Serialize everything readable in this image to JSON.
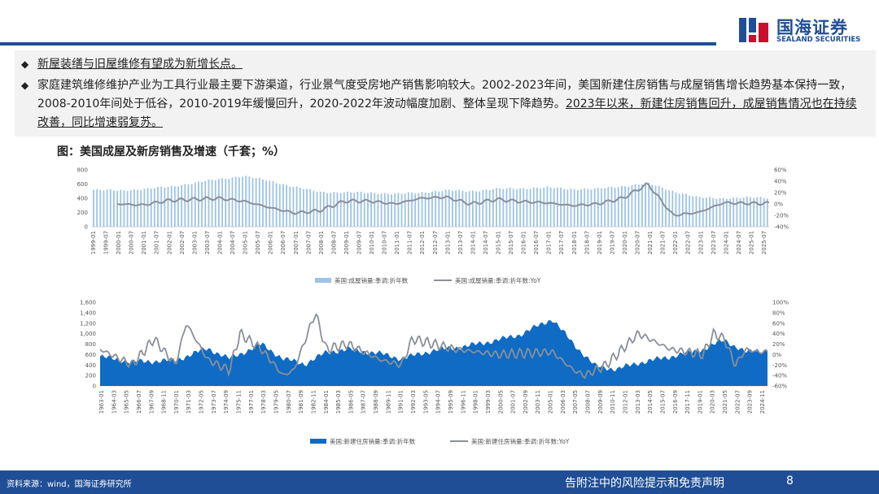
{
  "header": {
    "logo_cn": "国海证券",
    "logo_en": "SEALAND SECURITIES"
  },
  "bullets": {
    "b1": "新屋装缮与旧屋维修有望成为新增长点。",
    "b2_plain": "家庭建筑维修维护产业为工具行业最主要下游渠道，行业景气度受房地产销售影响较大。2002-2023年间，美国新建住房销售与成屋销售增长趋势基本保持一致，2008-2010年间处于低谷，2010-2019年缓慢回升，2020-2022年波动幅度加剧、整体呈现下降趋势。",
    "b2_underlined": "2023年以来，新建住房销售回升，成屋销售情况也在持续改善，同比增速弱复苏。"
  },
  "figure": {
    "title": "图：美国成屋及新房销售及增速（千套；%）"
  },
  "chart_data": [
    {
      "type": "bar",
      "legend": [
        "美国:成屋销量:季调:折年数",
        "美国:成屋销量:季调:折年数:YoY"
      ],
      "yleft_ticks": [
        "0",
        "200",
        "400",
        "600",
        "800"
      ],
      "yright_ticks": [
        "60%",
        "40%",
        "20%",
        "0%",
        "-20%",
        "-40%"
      ],
      "ylim_left": [
        0,
        800
      ],
      "ylim_right": [
        -40,
        60
      ],
      "x_ticks": [
        "1999-01",
        "1999-07",
        "2000-01",
        "2000-07",
        "2001-01",
        "2001-07",
        "2002-01",
        "2002-07",
        "2003-01",
        "2003-07",
        "2004-01",
        "2004-07",
        "2005-01",
        "2005-07",
        "2006-01",
        "2006-07",
        "2007-01",
        "2007-07",
        "2008-01",
        "2008-07",
        "2009-01",
        "2009-07",
        "2010-01",
        "2010-07",
        "2011-01",
        "2011-07",
        "2012-01",
        "2012-07",
        "2013-01",
        "2013-07",
        "2014-01",
        "2014-07",
        "2015-01",
        "2015-07",
        "2016-01",
        "2016-07",
        "2017-01",
        "2017-07",
        "2018-01",
        "2018-07",
        "2019-01",
        "2019-07",
        "2020-01",
        "2020-07",
        "2021-01",
        "2021-07",
        "2022-01",
        "2022-07",
        "2023-01",
        "2023-07",
        "2024-01",
        "2024-07",
        "2025-01",
        "2025-07"
      ],
      "series": [
        {
          "name": "美国:成屋销量:季调:折年数",
          "type": "bar",
          "x": [
            "1999",
            "2000",
            "2001",
            "2002",
            "2003",
            "2004",
            "2005",
            "2006",
            "2007",
            "2008",
            "2009",
            "2010",
            "2011",
            "2012",
            "2013",
            "2014",
            "2015",
            "2016",
            "2017",
            "2018",
            "2019",
            "2020",
            "2021",
            "2022",
            "2023",
            "2024",
            "2025"
          ],
          "values": [
            520,
            510,
            525,
            560,
            610,
            670,
            710,
            650,
            560,
            490,
            480,
            480,
            460,
            480,
            510,
            500,
            530,
            540,
            550,
            530,
            530,
            570,
            610,
            500,
            410,
            400,
            410
          ]
        },
        {
          "name": "美国:成屋销量:季调:折年数:YoY",
          "type": "line",
          "x": [
            "2000",
            "2001",
            "2002",
            "2003",
            "2004",
            "2005",
            "2006",
            "2007",
            "2008",
            "2009",
            "2010",
            "2011",
            "2012",
            "2013",
            "2014",
            "2015",
            "2016",
            "2017",
            "2018",
            "2019",
            "2020",
            "2021",
            "2022",
            "2023",
            "2024",
            "2025"
          ],
          "values": [
            0,
            -2,
            6,
            8,
            10,
            5,
            -6,
            -16,
            -12,
            5,
            5,
            0,
            10,
            12,
            0,
            8,
            4,
            2,
            -3,
            0,
            10,
            35,
            -20,
            -15,
            2,
            1
          ]
        }
      ]
    },
    {
      "type": "area",
      "legend": [
        "美国:新建住房销量:季调:折年数",
        "美国:新建住房销量:季调:折年数:YoY"
      ],
      "yleft_ticks": [
        "0",
        "200",
        "400",
        "600",
        "800",
        "1,000",
        "1,200",
        "1,400",
        "1,600"
      ],
      "yright_ticks": [
        "100%",
        "80%",
        "60%",
        "40%",
        "20%",
        "0%",
        "-20%",
        "-40%",
        "-60%"
      ],
      "ylim_left": [
        0,
        1600
      ],
      "ylim_right": [
        -60,
        100
      ],
      "x_ticks": [
        "1963-01",
        "1964-03",
        "1965-05",
        "1966-07",
        "1967-09",
        "1968-11",
        "1970-01",
        "1971-03",
        "1972-05",
        "1973-07",
        "1974-09",
        "1975-11",
        "1977-01",
        "1978-03",
        "1979-05",
        "1980-07",
        "1981-09",
        "1982-11",
        "1984-01",
        "1985-03",
        "1986-05",
        "1987-07",
        "1988-09",
        "1989-11",
        "1991-01",
        "1992-03",
        "1993-05",
        "1994-07",
        "1995-09",
        "1996-11",
        "1998-01",
        "1999-03",
        "2000-05",
        "2001-07",
        "2002-09",
        "2003-11",
        "2005-01",
        "2006-03",
        "2007-05",
        "2008-07",
        "2009-09",
        "2010-11",
        "2012-01",
        "2013-03",
        "2014-05",
        "2015-07",
        "2016-09",
        "2017-11",
        "2019-01",
        "2020-03",
        "2021-05",
        "2022-07",
        "2023-09",
        "2024-11"
      ],
      "series": [
        {
          "name": "美国:新建住房销量:季调:折年数",
          "type": "area",
          "x": [
            "1963",
            "1966",
            "1970",
            "1973",
            "1975",
            "1978",
            "1980",
            "1982",
            "1984",
            "1986",
            "1989",
            "1991",
            "1994",
            "1997",
            "2000",
            "2002",
            "2005",
            "2007",
            "2009",
            "2011",
            "2013",
            "2016",
            "2019",
            "2021",
            "2023",
            "2024"
          ],
          "values": [
            560,
            460,
            490,
            720,
            520,
            800,
            520,
            420,
            640,
            700,
            620,
            520,
            680,
            760,
            880,
            980,
            1280,
            800,
            380,
            320,
            440,
            560,
            700,
            880,
            640,
            680
          ]
        },
        {
          "name": "美国:新建住房销量:季调:折年数:YoY",
          "type": "line",
          "x": [
            "1963",
            "1964",
            "1966",
            "1968",
            "1970",
            "1971",
            "1973",
            "1975",
            "1976",
            "1978",
            "1980",
            "1981",
            "1983",
            "1984",
            "1986",
            "1989",
            "1991",
            "1992",
            "1996",
            "2000",
            "2005",
            "2007",
            "2008",
            "2010",
            "2012",
            "2013",
            "2016",
            "2019",
            "2020",
            "2021",
            "2022",
            "2023",
            "2024"
          ],
          "values": [
            10,
            0,
            -20,
            30,
            -20,
            60,
            -10,
            -30,
            40,
            10,
            -40,
            -30,
            80,
            10,
            20,
            -10,
            -20,
            30,
            10,
            0,
            5,
            -30,
            -40,
            -20,
            20,
            40,
            10,
            0,
            40,
            30,
            -20,
            10,
            5
          ]
        }
      ]
    }
  ],
  "footer": {
    "source": "资料来源：wind，国海证券研究所",
    "disclaimer": "告附注中的风险提示和免责声明",
    "page": "8"
  },
  "colors": {
    "brand": "#1f4e96",
    "bar_light": "#9dc3e6",
    "area_dark": "#0f6bc4",
    "line_gray": "#8a8f99"
  }
}
